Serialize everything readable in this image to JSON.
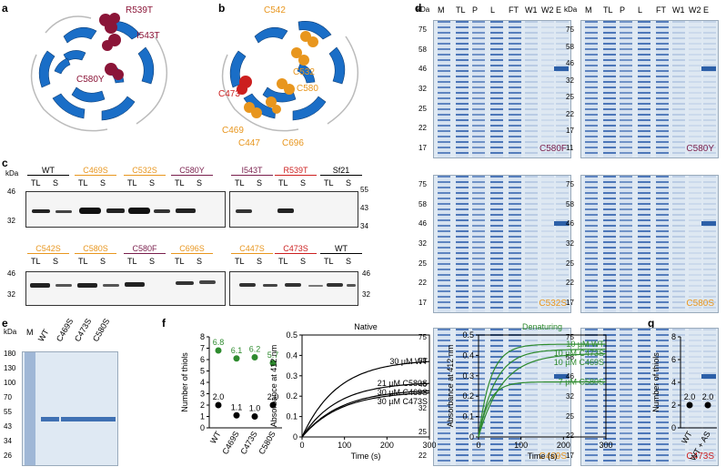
{
  "panels": {
    "a": "a",
    "b": "b",
    "c": "c",
    "d": "d",
    "e": "e",
    "f": "f",
    "g": "g"
  },
  "colors": {
    "crimson": "#8b1538",
    "orange": "#e8961e",
    "blue": "#1a6ec7",
    "green": "#2e8b2e",
    "red": "#cc1f1f",
    "purple": "#7a1f4d"
  },
  "panel_a": {
    "labels": [
      "R539T",
      "I543T",
      "C580Y"
    ]
  },
  "panel_b": {
    "labels": [
      "C542",
      "C473",
      "C532",
      "C580",
      "C469",
      "C447",
      "C696"
    ]
  },
  "panel_c": {
    "unit": "kDa",
    "lane_tl": "TL",
    "lane_s": "S",
    "row1_left_markers": [
      "46",
      "32"
    ],
    "row1_right_markers": [
      "55",
      "43",
      "34"
    ],
    "row2_left_markers": [
      "46",
      "32"
    ],
    "row2_right_markers": [
      "46",
      "32"
    ],
    "row1_groups": [
      "WT",
      "C469S",
      "C532S",
      "C580Y",
      "I543T",
      "R539T",
      "Sf21"
    ],
    "row2_groups": [
      "C542S",
      "C580S",
      "C580F",
      "C696S",
      "C447S",
      "C473S",
      "WT"
    ]
  },
  "panel_d": {
    "unit": "kDa",
    "lanes": [
      "M",
      "TL",
      "P",
      "L",
      "FT",
      "W1",
      "W2",
      "E"
    ],
    "gels": [
      {
        "name": "C580F",
        "markers": [
          "75",
          "58",
          "46",
          "32",
          "25",
          "22",
          "17"
        ]
      },
      {
        "name": "C580Y",
        "markers": [
          "75",
          "58",
          "46",
          "32",
          "25",
          "22",
          "17",
          "11"
        ]
      },
      {
        "name": "C532S",
        "markers": [
          "75",
          "58",
          "46",
          "32",
          "25",
          "22",
          "17"
        ]
      },
      {
        "name": "C580S",
        "markers": [
          "75",
          "58",
          "46",
          "32",
          "25",
          "22",
          "17"
        ]
      },
      {
        "name": "C469S",
        "markers": [
          "75",
          "58",
          "46",
          "32",
          "25",
          "22"
        ]
      },
      {
        "name": "C473S",
        "markers": [
          "75",
          "58",
          "46",
          "32",
          "25",
          "22",
          "17"
        ]
      }
    ]
  },
  "panel_e": {
    "unit": "kDa",
    "lane_m": "M",
    "lanes": [
      "WT",
      "C469S",
      "C473S",
      "C580S"
    ],
    "markers": [
      "180",
      "130",
      "100",
      "70",
      "55",
      "43",
      "34",
      "26"
    ]
  },
  "chart_data": [
    {
      "type": "scatter",
      "title": "",
      "ylabel": "Number of thiols",
      "categories": [
        "WT",
        "C469S",
        "C473S",
        "C580S"
      ],
      "ylim": [
        0,
        8
      ],
      "yticks": [
        "0",
        "1",
        "2",
        "3",
        "4",
        "5",
        "6",
        "7",
        "8"
      ],
      "series": [
        {
          "name": "Denaturing",
          "color": "#2e8b2e",
          "values": [
            6.8,
            6.1,
            6.2,
            5.7
          ],
          "labels": [
            "6.8",
            "6.1",
            "6.2",
            "5.7"
          ]
        },
        {
          "name": "Native",
          "color": "#000000",
          "values": [
            2.0,
            1.1,
            1.0,
            2.0
          ],
          "labels": [
            "2.0",
            "1.1",
            "1.0",
            "2.0"
          ]
        }
      ]
    },
    {
      "type": "line",
      "title": "Native",
      "xlabel": "Time (s)",
      "ylabel": "Absorbance at 412 nm",
      "xlim": [
        0,
        300
      ],
      "ylim": [
        0,
        0.5
      ],
      "xticks": [
        "0",
        "100",
        "200",
        "300"
      ],
      "yticks": [
        "0",
        "0.1",
        "0.2",
        "0.3",
        "0.4",
        "0.5"
      ],
      "series": [
        {
          "name": "30 µM WT",
          "plateau": 0.38,
          "k": 0.012
        },
        {
          "name": "21 µM C580S",
          "plateau": 0.27,
          "k": 0.012
        },
        {
          "name": "30 µM C469S",
          "plateau": 0.235,
          "k": 0.011
        },
        {
          "name": "30 µM C473S",
          "plateau": 0.225,
          "k": 0.011
        }
      ]
    },
    {
      "type": "line",
      "title": "Denaturing",
      "xlabel": "Time (s)",
      "ylabel": "Absorbance at 412 nm",
      "xlim": [
        0,
        300
      ],
      "ylim": [
        0,
        0.5
      ],
      "xticks": [
        "0",
        "100",
        "200",
        "300"
      ],
      "yticks": [
        "0",
        "0.1",
        "0.2",
        "0.3",
        "0.4",
        "0.5"
      ],
      "series": [
        {
          "name": "10 µM WT",
          "plateau": 0.455,
          "k": 0.035
        },
        {
          "name": "10 µM C473S",
          "plateau": 0.43,
          "k": 0.025
        },
        {
          "name": "10 µM C469S",
          "plateau": 0.41,
          "k": 0.018
        },
        {
          "name": "7 µM C580S",
          "plateau": 0.27,
          "k": 0.04
        }
      ]
    },
    {
      "type": "scatter",
      "title": "",
      "ylabel": "Number of thiols",
      "categories": [
        "WT",
        "WT + AS"
      ],
      "ylim": [
        0,
        8
      ],
      "yticks": [
        "0",
        "2",
        "4",
        "6",
        "8"
      ],
      "series": [
        {
          "name": "Native",
          "color": "#000000",
          "values": [
            2.0,
            2.0
          ],
          "labels": [
            "2.0",
            "2.0"
          ]
        }
      ]
    }
  ]
}
